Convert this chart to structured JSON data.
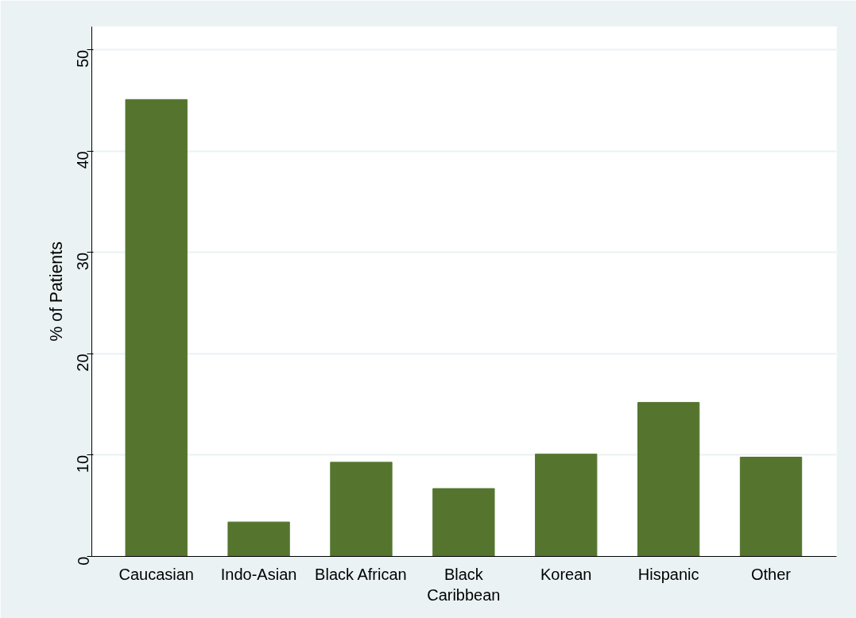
{
  "chart_data": {
    "type": "bar",
    "ylabel": "% of Patients",
    "categories": [
      "Caucasian",
      "Indo-Asian",
      "Black African",
      "Black\nCaribbean",
      "Korean",
      "Hispanic",
      "Other"
    ],
    "values": [
      45.1,
      3.4,
      9.3,
      6.7,
      10.1,
      15.2,
      9.8
    ],
    "color": "#55752f",
    "ylim": [
      0,
      52.3
    ],
    "yticks": [
      0,
      10,
      20,
      30,
      40,
      50
    ],
    "grid": "y"
  }
}
